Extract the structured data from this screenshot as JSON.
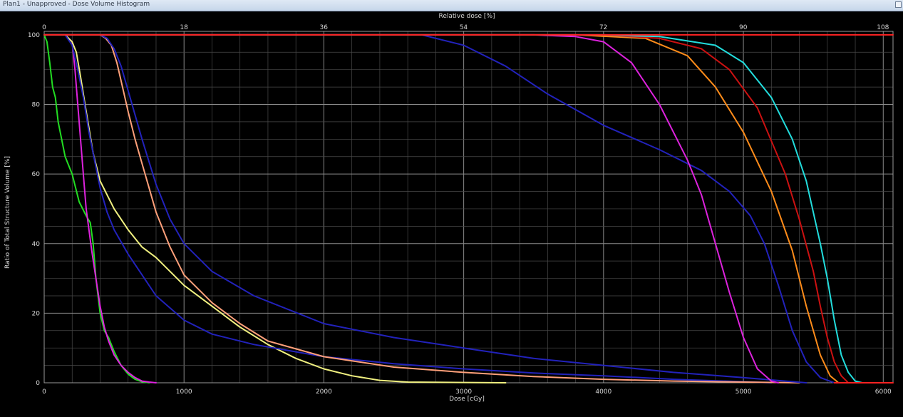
{
  "window": {
    "title": "Plan1 - Unapproved - Dose Volume Histogram",
    "button_icon": "restore-icon"
  },
  "chart_data": {
    "type": "line",
    "title": "",
    "xlabel": "Dose [cGy]",
    "ylabel": "Ratio of Total Structure Volume [%]",
    "x2label": "Relative dose [%]",
    "xlim": [
      0,
      6070
    ],
    "ylim": [
      0,
      101
    ],
    "x2lim": [
      0,
      109.3
    ],
    "xticks": [
      0,
      1000,
      2000,
      3000,
      4000,
      5000,
      6000
    ],
    "x2ticks": [
      0,
      18,
      36,
      54,
      72,
      90,
      108
    ],
    "yticks": [
      0,
      20,
      40,
      60,
      80,
      100
    ],
    "grid": true,
    "legend": "none",
    "series": [
      {
        "color": "#22dd22",
        "x": [
          0,
          20,
          40,
          60,
          80,
          100,
          150,
          200,
          250,
          300,
          330,
          350,
          370,
          400,
          430,
          460,
          500,
          550,
          600,
          650,
          700,
          750
        ],
        "y": [
          100,
          98,
          92,
          85,
          82,
          75,
          65,
          60,
          52,
          48,
          46,
          40,
          30,
          20,
          15,
          13,
          9,
          5,
          2.5,
          1,
          0.3,
          0
        ]
      },
      {
        "color": "#dd22dd",
        "x": [
          0,
          150,
          200,
          220,
          240,
          260,
          280,
          300,
          320,
          340,
          370,
          400,
          430,
          460,
          500,
          550,
          600,
          650,
          700,
          750,
          800
        ],
        "y": [
          100,
          100,
          98,
          90,
          80,
          70,
          60,
          50,
          44,
          38,
          30,
          22,
          16,
          12,
          8,
          5,
          3,
          1.5,
          0.5,
          0.2,
          0
        ]
      },
      {
        "color": "#f0f080",
        "x": [
          0,
          150,
          200,
          230,
          260,
          300,
          350,
          400,
          500,
          600,
          700,
          800,
          900,
          1000,
          1200,
          1400,
          1600,
          1800,
          2000,
          2200,
          2400,
          2600,
          3300
        ],
        "y": [
          100,
          100,
          98,
          95,
          88,
          78,
          66,
          58,
          50,
          44,
          39,
          36,
          32,
          28,
          22,
          16,
          11,
          7,
          4,
          2,
          0.7,
          0.2,
          0
        ]
      },
      {
        "color": "#2222bb",
        "x": [
          0,
          150,
          200,
          240,
          280,
          320,
          360,
          400,
          450,
          500,
          600,
          800,
          1000,
          1200,
          1500,
          2000,
          2500,
          3000,
          3500,
          4000,
          4500,
          5000,
          5200
        ],
        "y": [
          100,
          100,
          97,
          90,
          82,
          72,
          64,
          56,
          49,
          44,
          37,
          25,
          18,
          14,
          11,
          7.5,
          5.5,
          4,
          2.8,
          2,
          1,
          0.3,
          0
        ]
      },
      {
        "color": "#ffa07a",
        "x": [
          0,
          400,
          440,
          480,
          520,
          560,
          600,
          650,
          700,
          750,
          800,
          900,
          1000,
          1200,
          1400,
          1600,
          2000,
          2500,
          3000,
          3500,
          4000,
          4500,
          5000,
          5400
        ],
        "y": [
          100,
          100,
          99,
          97,
          92,
          85,
          78,
          70,
          63,
          56,
          49,
          39,
          31,
          23,
          17,
          12,
          7.5,
          4.5,
          3,
          1.8,
          1,
          0.5,
          0.2,
          0
        ]
      },
      {
        "color": "#2222bb",
        "x": [
          0,
          400,
          450,
          500,
          550,
          600,
          700,
          800,
          900,
          1000,
          1200,
          1500,
          2000,
          2500,
          3000,
          3500,
          4000,
          4500,
          5000,
          5300,
          5450
        ],
        "y": [
          100,
          100,
          99,
          96,
          91,
          84,
          70,
          57,
          47,
          40,
          32,
          25,
          17,
          13,
          10,
          7,
          5,
          3,
          1.5,
          0.5,
          0
        ]
      },
      {
        "color": "#2222bb",
        "x": [
          0,
          2700,
          3000,
          3300,
          3600,
          4000,
          4400,
          4700,
          4900,
          5050,
          5150,
          5250,
          5350,
          5450,
          5550,
          5650
        ],
        "y": [
          100,
          100,
          97,
          91,
          83,
          74,
          67,
          61,
          55,
          48,
          40,
          28,
          15,
          6,
          1.5,
          0
        ]
      },
      {
        "color": "#dd22dd",
        "x": [
          0,
          3500,
          3800,
          4000,
          4200,
          4400,
          4600,
          4700,
          4800,
          4900,
          5000,
          5100,
          5200,
          5250
        ],
        "y": [
          100,
          100,
          99.5,
          98,
          92,
          80,
          64,
          54,
          40,
          26,
          13,
          4,
          0.5,
          0
        ]
      },
      {
        "color": "#ff8c1a",
        "x": [
          0,
          3800,
          4300,
          4600,
          4800,
          5000,
          5200,
          5350,
          5450,
          5550,
          5620,
          5680
        ],
        "y": [
          100,
          100,
          99,
          94,
          85,
          72,
          55,
          38,
          22,
          8,
          2,
          0
        ]
      },
      {
        "color": "#cc1111",
        "x": [
          0,
          4000,
          4400,
          4700,
          4900,
          5100,
          5300,
          5400,
          5500,
          5550,
          5600,
          5650,
          5700,
          5750
        ],
        "y": [
          100,
          100,
          99,
          96,
          90,
          79,
          60,
          47,
          32,
          22,
          13,
          6,
          2,
          0
        ]
      },
      {
        "color": "#22dddd",
        "x": [
          0,
          4000,
          4400,
          4800,
          5000,
          5200,
          5350,
          5450,
          5550,
          5600,
          5650,
          5700,
          5750,
          5800,
          5850
        ],
        "y": [
          100,
          100,
          99.5,
          97,
          92,
          82,
          70,
          58,
          40,
          30,
          18,
          8,
          3,
          0.5,
          0
        ]
      },
      {
        "color": "#ff2222",
        "x": [
          0,
          6070
        ],
        "y": [
          100,
          100
        ]
      },
      {
        "color": "#ff2222",
        "x": [
          5650,
          5750,
          6070
        ],
        "y": [
          0,
          0,
          0
        ]
      }
    ]
  }
}
